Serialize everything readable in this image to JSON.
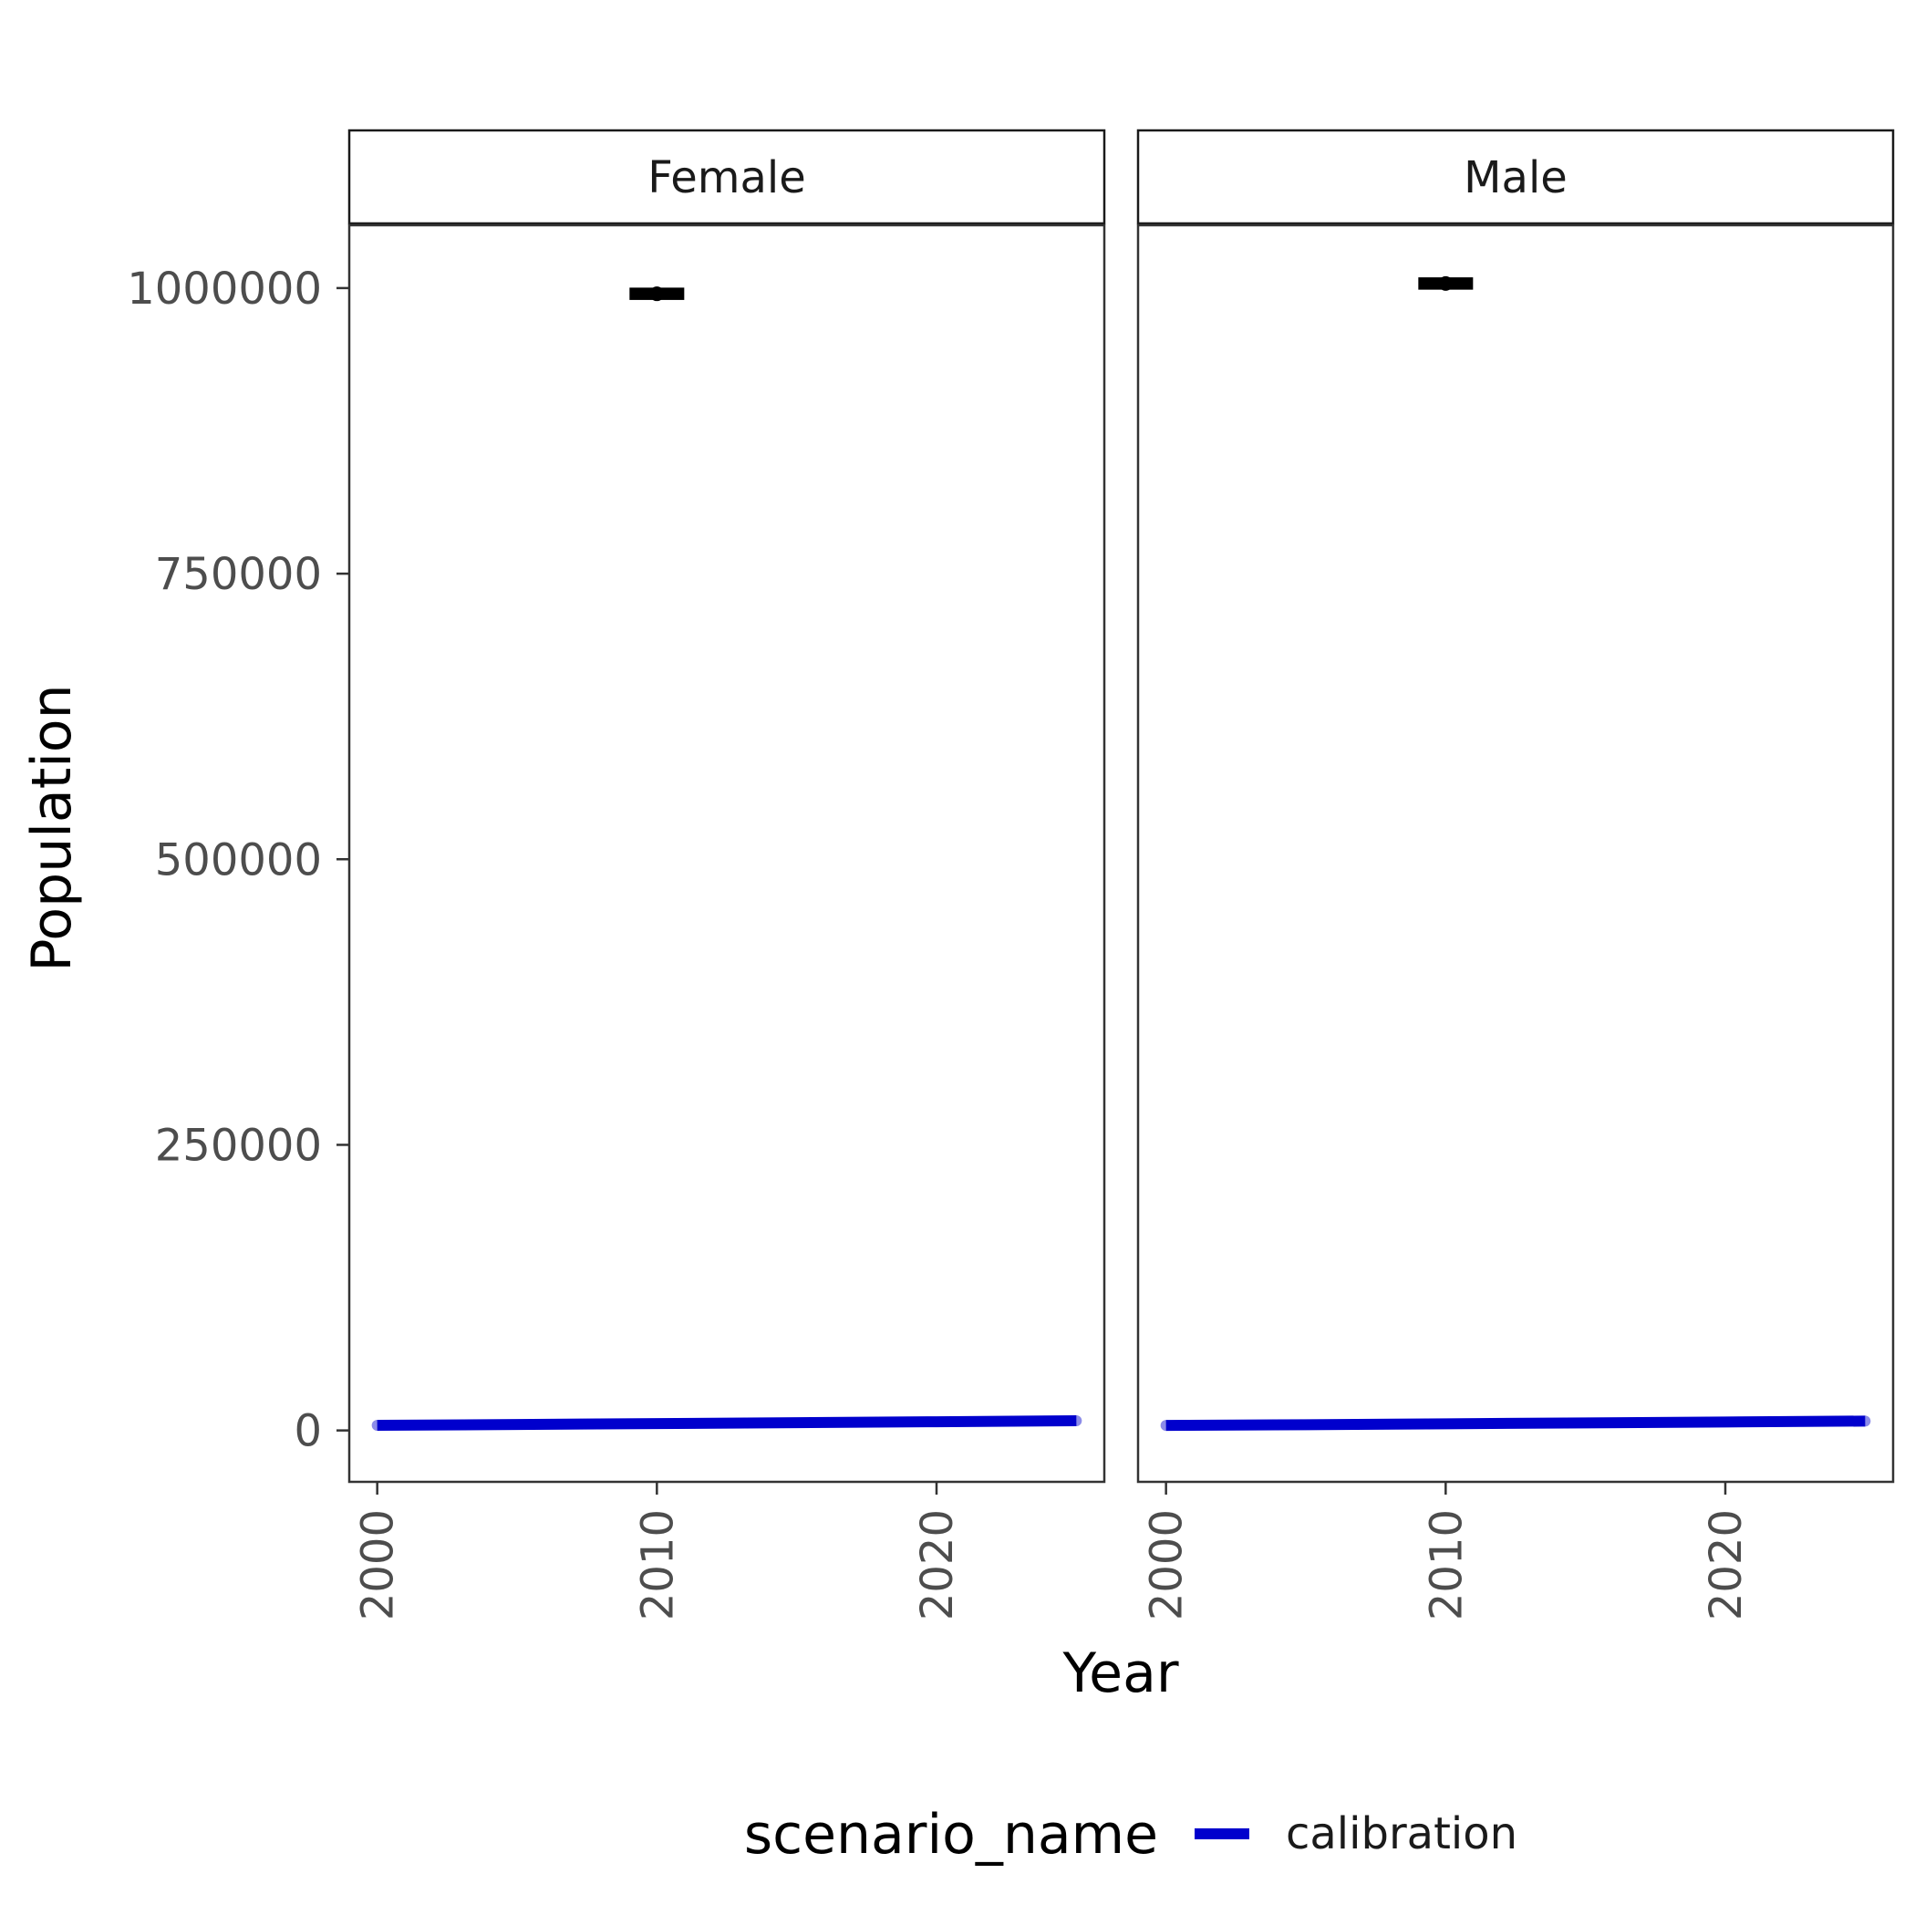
{
  "chart_data": {
    "type": "line",
    "facets": [
      "Female",
      "Male"
    ],
    "xlabel": "Year",
    "ylabel": "Population",
    "x_ticks": [
      2000,
      2010,
      2020
    ],
    "y_ticks": [
      0,
      250000,
      500000,
      750000,
      1000000
    ],
    "y_tick_labels": [
      "0",
      "250000",
      "500000",
      "750000",
      "1000000"
    ],
    "xlim": [
      1999,
      2026
    ],
    "ylim": [
      -45000,
      1055000
    ],
    "grid": false,
    "legend": {
      "title": "scenario_name",
      "position": "bottom",
      "entries": [
        {
          "name": "calibration",
          "color": "#0000cd"
        }
      ]
    },
    "series": [
      {
        "name": "calibration",
        "facet": "Female",
        "color": "#0000cd",
        "x": [
          2000,
          2005,
          2010,
          2015,
          2020,
          2025
        ],
        "y": [
          4500,
          5200,
          6000,
          6800,
          7600,
          8500
        ]
      },
      {
        "name": "calibration",
        "facet": "Male",
        "color": "#0000cd",
        "x": [
          2000,
          2005,
          2010,
          2015,
          2020,
          2025
        ],
        "y": [
          4400,
          5000,
          5800,
          6600,
          7400,
          8200
        ]
      }
    ],
    "observed": [
      {
        "facet": "Female",
        "x": 2010,
        "y": 995000,
        "low": 992000,
        "high": 998000,
        "color": "#000000"
      },
      {
        "facet": "Male",
        "x": 2010,
        "y": 1004000,
        "low": 1001000,
        "high": 1007000,
        "color": "#000000"
      }
    ]
  }
}
